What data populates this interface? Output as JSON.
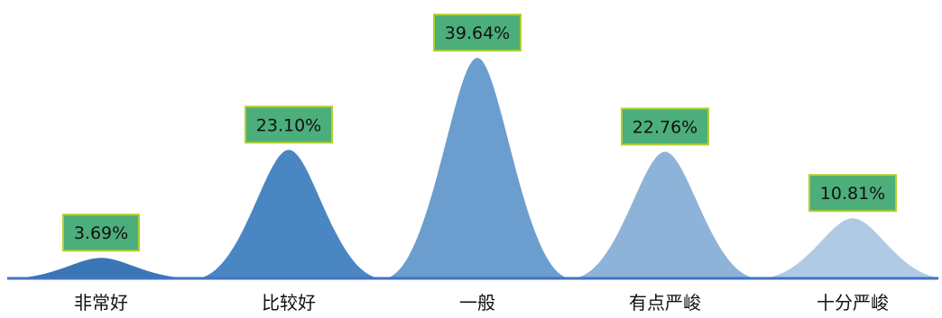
{
  "chart_data": {
    "type": "area",
    "title": "",
    "xlabel": "",
    "ylabel": "",
    "categories": [
      "非常好",
      "比较好",
      "一般",
      "有点严峻",
      "十分严峻"
    ],
    "values": [
      3.69,
      23.1,
      39.64,
      22.76,
      10.81
    ],
    "labels": [
      "3.69%",
      "23.10%",
      "39.64%",
      "22.76%",
      "10.81%"
    ],
    "ylim": [
      0,
      40
    ],
    "grid": false,
    "legend": "none",
    "colors": [
      "#3a76b6",
      "#4a86c2",
      "#6b9dce",
      "#8eb3d9",
      "#b0cae5"
    ],
    "label_box_color": "#4cae7b",
    "label_box_border": "#b5cf2a",
    "axis_color": "#4472c4"
  }
}
